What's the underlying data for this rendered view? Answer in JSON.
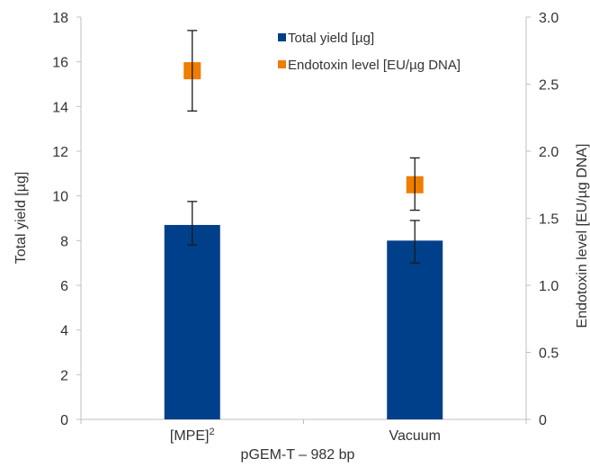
{
  "chart_data": {
    "type": "bar",
    "categories": [
      "[MPE]",
      "Vacuum"
    ],
    "category_superscripts": [
      "2",
      ""
    ],
    "xlabel": "pGEM-T – 982 bp",
    "grid": false,
    "legend_position": "top-center",
    "left_axis": {
      "label": "Total yield [µg]",
      "ylim": [
        0,
        18
      ],
      "ticks": [
        "0",
        "2",
        "4",
        "6",
        "8",
        "10",
        "12",
        "14",
        "16",
        "18"
      ]
    },
    "right_axis": {
      "label": "Endotoxin level [EU/µg DNA]",
      "ylim": [
        0,
        3.0
      ],
      "ticks": [
        "0",
        "0.5",
        "1.0",
        "1.5",
        "2.0",
        "2.5",
        "3.0"
      ]
    },
    "series": [
      {
        "name": "Total yield [µg]",
        "kind": "bar",
        "axis": "left",
        "color": "#003f8a",
        "values": [
          8.7,
          8.0
        ],
        "error_low": [
          7.8,
          7.0
        ],
        "error_high": [
          9.75,
          8.9
        ]
      },
      {
        "name": "Endotoxin level [EU/µg DNA]",
        "kind": "marker",
        "axis": "right",
        "color": "#ef7d00",
        "values": [
          2.6,
          1.75
        ],
        "error_low": [
          2.3,
          1.56
        ],
        "error_high": [
          2.9,
          1.95
        ]
      }
    ]
  }
}
